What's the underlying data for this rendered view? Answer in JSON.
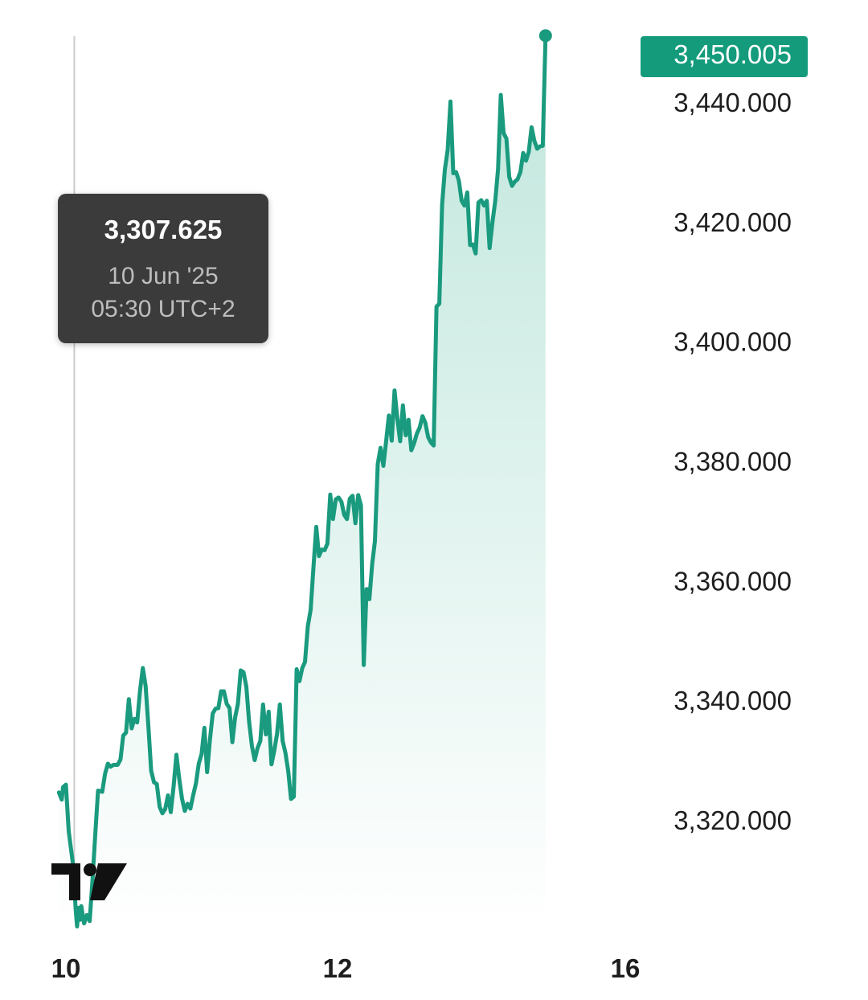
{
  "colors": {
    "line": "#1a9a7e",
    "area_top": "#bfe6dc",
    "area_bottom": "#ffffff",
    "badge_bg": "#139b7c",
    "crosshair": "#cccccc",
    "tooltip_bg": "#3b3b3b"
  },
  "tooltip": {
    "value": "3,307.625",
    "date": "10 Jun '25",
    "time": "05:30 UTC+2"
  },
  "last_price_label": "3,450.005",
  "logo_icon": "tradingview-logo-icon",
  "chart_data": {
    "type": "area",
    "title": "",
    "xlabel": "",
    "ylabel": "",
    "y_ticks": [
      "3,440.000",
      "3,420.000",
      "3,400.000",
      "3,380.000",
      "3,360.000",
      "3,340.000",
      "3,320.000"
    ],
    "y_tick_values": [
      3440,
      3420,
      3400,
      3380,
      3360,
      3340,
      3320
    ],
    "ylim": [
      3301,
      3453
    ],
    "x_ticks": [
      "10",
      "12",
      "16"
    ],
    "x_tick_values": [
      0,
      2,
      4
    ],
    "xlim": [
      -0.05,
      4.0
    ],
    "crosshair_x": 0.06,
    "grid": false,
    "series": [
      {
        "values": [
          [
            -0.05,
            3324.6
          ],
          [
            -0.03,
            3323.4
          ],
          [
            -0.02,
            3325.5
          ],
          [
            0.0,
            3325.9
          ],
          [
            0.02,
            3318.1
          ],
          [
            0.05,
            3312.7
          ],
          [
            0.07,
            3305.0
          ],
          [
            0.08,
            3302.2
          ],
          [
            0.09,
            3305.3
          ],
          [
            0.1,
            3303.3
          ],
          [
            0.11,
            3305.6
          ],
          [
            0.13,
            3302.7
          ],
          [
            0.15,
            3304.1
          ],
          [
            0.17,
            3303.1
          ],
          [
            0.19,
            3310.0
          ],
          [
            0.21,
            3317.5
          ],
          [
            0.23,
            3324.9
          ],
          [
            0.26,
            3324.7
          ],
          [
            0.28,
            3327.7
          ],
          [
            0.3,
            3329.4
          ],
          [
            0.32,
            3328.9
          ],
          [
            0.34,
            3329.2
          ],
          [
            0.37,
            3329.2
          ],
          [
            0.39,
            3330.1
          ],
          [
            0.41,
            3334.1
          ],
          [
            0.43,
            3334.6
          ],
          [
            0.45,
            3340.2
          ],
          [
            0.47,
            3335.3
          ],
          [
            0.49,
            3336.9
          ],
          [
            0.51,
            3336.3
          ],
          [
            0.53,
            3341.6
          ],
          [
            0.55,
            3345.4
          ],
          [
            0.57,
            3342.4
          ],
          [
            0.59,
            3335.5
          ],
          [
            0.61,
            3328.2
          ],
          [
            0.63,
            3326.3
          ],
          [
            0.65,
            3326.0
          ],
          [
            0.67,
            3322.2
          ],
          [
            0.69,
            3321.1
          ],
          [
            0.71,
            3321.8
          ],
          [
            0.73,
            3324.1
          ],
          [
            0.75,
            3321.3
          ],
          [
            0.77,
            3325.6
          ],
          [
            0.79,
            3330.9
          ],
          [
            0.81,
            3327.0
          ],
          [
            0.83,
            3323.6
          ],
          [
            0.85,
            3321.5
          ],
          [
            0.87,
            3322.7
          ],
          [
            0.89,
            3321.9
          ],
          [
            0.91,
            3324.1
          ],
          [
            0.93,
            3326.1
          ],
          [
            0.95,
            3329.4
          ],
          [
            0.97,
            3331.0
          ],
          [
            0.99,
            3335.4
          ],
          [
            1.01,
            3328.0
          ],
          [
            1.03,
            3333.4
          ],
          [
            1.05,
            3337.8
          ],
          [
            1.07,
            3338.6
          ],
          [
            1.09,
            3338.7
          ],
          [
            1.11,
            3341.5
          ],
          [
            1.13,
            3341.5
          ],
          [
            1.15,
            3339.4
          ],
          [
            1.17,
            3338.7
          ],
          [
            1.19,
            3333.0
          ],
          [
            1.21,
            3337.1
          ],
          [
            1.23,
            3339.4
          ],
          [
            1.25,
            3345.0
          ],
          [
            1.27,
            3344.7
          ],
          [
            1.29,
            3342.3
          ],
          [
            1.31,
            3336.5
          ],
          [
            1.33,
            3332.4
          ],
          [
            1.35,
            3330.0
          ],
          [
            1.37,
            3332.0
          ],
          [
            1.39,
            3333.2
          ],
          [
            1.41,
            3339.3
          ],
          [
            1.43,
            3334.3
          ],
          [
            1.45,
            3338.1
          ],
          [
            1.47,
            3329.3
          ],
          [
            1.49,
            3331.6
          ],
          [
            1.51,
            3334.4
          ],
          [
            1.53,
            3339.3
          ],
          [
            1.55,
            3333.2
          ],
          [
            1.57,
            3331.2
          ],
          [
            1.59,
            3328.1
          ],
          [
            1.61,
            3323.5
          ],
          [
            1.63,
            3323.9
          ],
          [
            1.65,
            3345.2
          ],
          [
            1.67,
            3343.2
          ],
          [
            1.69,
            3345.4
          ],
          [
            1.71,
            3346.4
          ],
          [
            1.73,
            3352.4
          ],
          [
            1.75,
            3355.1
          ],
          [
            1.77,
            3362.2
          ],
          [
            1.79,
            3369.0
          ],
          [
            1.81,
            3364.1
          ],
          [
            1.83,
            3365.2
          ],
          [
            1.85,
            3365.1
          ],
          [
            1.87,
            3366.2
          ],
          [
            1.89,
            3374.4
          ],
          [
            1.91,
            3370.3
          ],
          [
            1.93,
            3373.6
          ],
          [
            1.95,
            3373.9
          ],
          [
            1.97,
            3373.2
          ],
          [
            1.99,
            3371.0
          ],
          [
            2.01,
            3370.3
          ],
          [
            2.03,
            3373.7
          ],
          [
            2.05,
            3374.2
          ],
          [
            2.07,
            3369.6
          ],
          [
            2.09,
            3374.3
          ],
          [
            2.11,
            3372.6
          ],
          [
            2.13,
            3345.9
          ],
          [
            2.15,
            3358.6
          ],
          [
            2.17,
            3356.9
          ],
          [
            2.19,
            3362.8
          ],
          [
            2.21,
            3366.6
          ],
          [
            2.23,
            3379.5
          ],
          [
            2.25,
            3382.2
          ],
          [
            2.27,
            3379.2
          ],
          [
            2.29,
            3383.4
          ],
          [
            2.31,
            3387.6
          ],
          [
            2.33,
            3383.4
          ],
          [
            2.35,
            3391.8
          ],
          [
            2.37,
            3387.1
          ],
          [
            2.39,
            3383.3
          ],
          [
            2.41,
            3389.3
          ],
          [
            2.43,
            3384.3
          ],
          [
            2.45,
            3386.9
          ],
          [
            2.47,
            3381.8
          ],
          [
            2.49,
            3383.0
          ],
          [
            2.51,
            3384.6
          ],
          [
            2.53,
            3385.6
          ],
          [
            2.55,
            3387.5
          ],
          [
            2.57,
            3386.4
          ],
          [
            2.59,
            3384.0
          ],
          [
            2.61,
            3383.1
          ],
          [
            2.63,
            3382.6
          ],
          [
            2.65,
            3405.8
          ],
          [
            2.67,
            3406.3
          ],
          [
            2.69,
            3422.9
          ],
          [
            2.71,
            3428.7
          ],
          [
            2.73,
            3432.0
          ],
          [
            2.75,
            3440.1
          ],
          [
            2.77,
            3428.1
          ],
          [
            2.79,
            3428.3
          ],
          [
            2.81,
            3426.9
          ],
          [
            2.83,
            3423.5
          ],
          [
            2.85,
            3422.7
          ],
          [
            2.87,
            3424.9
          ],
          [
            2.89,
            3416.1
          ],
          [
            2.91,
            3416.2
          ],
          [
            2.93,
            3414.7
          ],
          [
            2.95,
            3423.2
          ],
          [
            2.97,
            3423.6
          ],
          [
            2.99,
            3422.7
          ],
          [
            3.01,
            3423.5
          ],
          [
            3.03,
            3415.6
          ],
          [
            3.05,
            3419.9
          ],
          [
            3.07,
            3423.5
          ],
          [
            3.09,
            3428.8
          ],
          [
            3.11,
            3441.2
          ],
          [
            3.13,
            3434.8
          ],
          [
            3.15,
            3433.9
          ],
          [
            3.17,
            3427.5
          ],
          [
            3.19,
            3426.0
          ],
          [
            3.21,
            3426.7
          ],
          [
            3.23,
            3427.1
          ],
          [
            3.25,
            3428.3
          ],
          [
            3.27,
            3431.5
          ],
          [
            3.29,
            3430.2
          ],
          [
            3.31,
            3431.7
          ],
          [
            3.33,
            3435.8
          ],
          [
            3.35,
            3433.5
          ],
          [
            3.37,
            3432.2
          ],
          [
            3.39,
            3432.6
          ],
          [
            3.41,
            3432.7
          ],
          [
            3.43,
            3451.1
          ]
        ]
      }
    ],
    "last_value": 3450.005
  }
}
